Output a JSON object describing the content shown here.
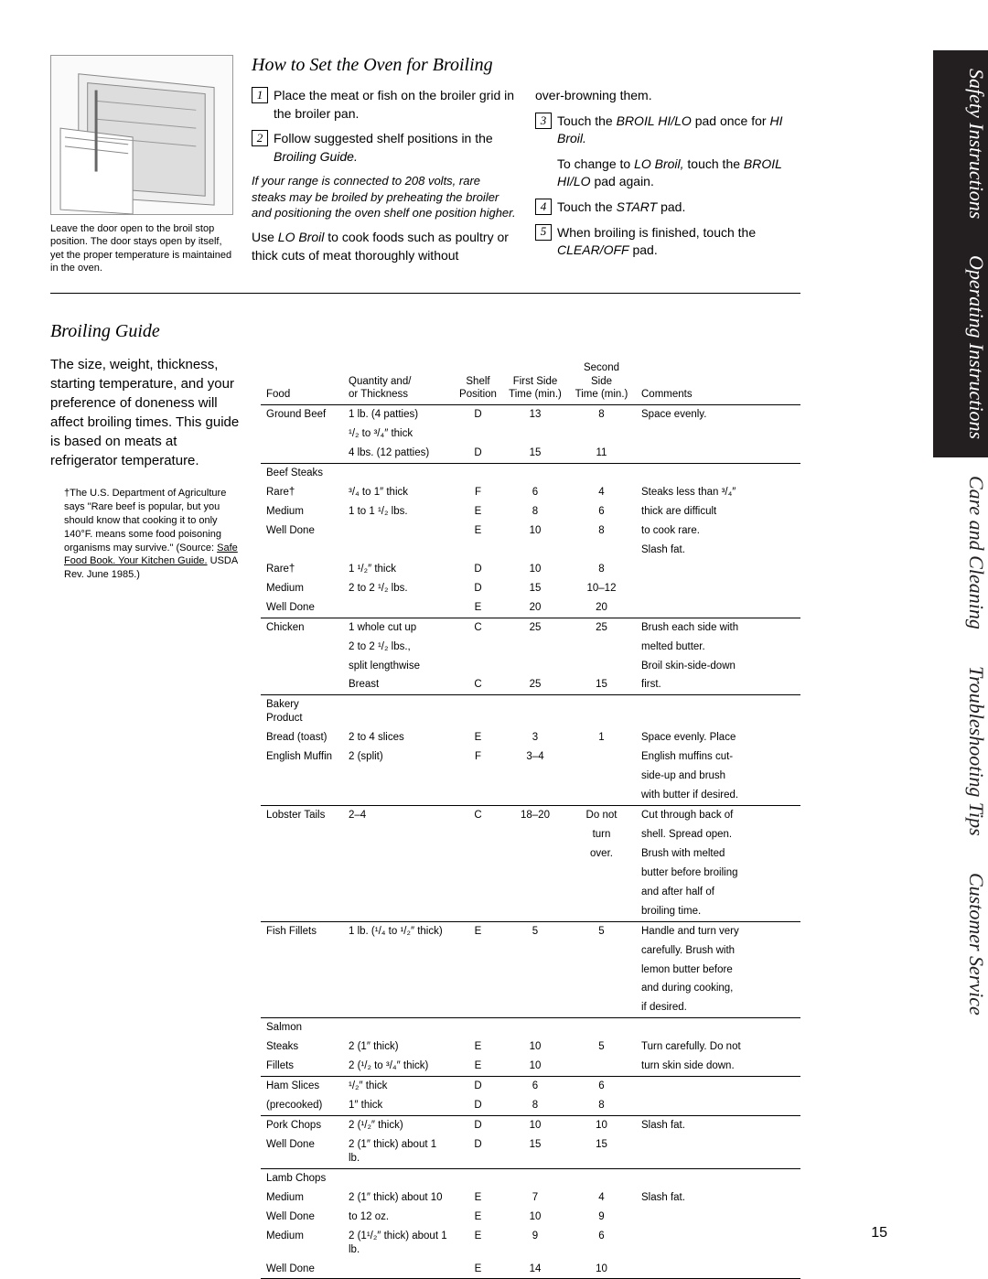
{
  "sidebarTabs": [
    {
      "label": "Safety Instructions",
      "style": "dark"
    },
    {
      "label": "Operating Instructions",
      "style": "dark"
    },
    {
      "label": "Care and Cleaning",
      "style": "light"
    },
    {
      "label": "Troubleshooting Tips",
      "style": "light"
    },
    {
      "label": "Customer Service",
      "style": "light"
    }
  ],
  "imageCaption": "Leave the door open to the broil stop position. The door stays open by itself, yet the proper temperature is maintained in the oven.",
  "section1": {
    "title": "How to Set the Oven for Broiling",
    "left": {
      "step1": "Place the meat or fish on the broiler grid in the broiler pan.",
      "step2a": "Follow suggested shelf positions in the ",
      "step2b": "Broiling Guide.",
      "note": "If your range is connected to 208 volts, rare steaks may be broiled by preheating the broiler and positioning the oven shelf one position higher.",
      "lo1": "Use ",
      "lo2": "LO Broil",
      "lo3": " to cook foods such as poultry or thick cuts of meat thoroughly without"
    },
    "right": {
      "over": "over-browning them.",
      "step3a": "Touch the ",
      "step3b": "BROIL HI/LO",
      "step3c": " pad once for ",
      "step3d": "HI Broil.",
      "chg1": "To change to ",
      "chg2": "LO Broil,",
      "chg3": " touch the ",
      "chg4": "BROIL HI/LO",
      "chg5": " pad again.",
      "step4a": "Touch the ",
      "step4b": "START",
      "step4c": " pad.",
      "step5a": "When broiling is finished, touch the ",
      "step5b": "CLEAR/OFF",
      "step5c": " pad."
    }
  },
  "section2": {
    "title": "Broiling Guide",
    "intro": "The size, weight, thickness, starting temperature, and your preference of doneness will affect broiling times. This guide is based on meats at refrigerator temperature.",
    "usda1": "The U.S. Department of Agriculture says \"Rare beef is popular, but you should know that cooking it to only 140°F. means some food poisoning organisms may survive.\" (Source: ",
    "usda2": "Safe Food Book. Your Kitchen Guide.",
    "usda3": " USDA Rev. June 1985.)",
    "headers": {
      "food": "Food",
      "qty1": "Quantity and/",
      "qty2": "or Thickness",
      "shelf1": "Shelf",
      "shelf2": "Position",
      "first1": "First Side",
      "first2": "Time (min.)",
      "second1": "Second Side",
      "second2": "Time (min.)",
      "comments": "Comments"
    },
    "groups": [
      {
        "rows": [
          {
            "food": "Ground Beef",
            "qty": "1 lb. (4 patties)",
            "shelf": "D",
            "t1": "13",
            "t2": "8",
            "comment": "Space evenly."
          },
          {
            "food": "",
            "qty": "¹/₂ to ³/₄″ thick",
            "shelf": "",
            "t1": "",
            "t2": "",
            "comment": ""
          },
          {
            "food": "",
            "qty": "4 lbs. (12 patties)",
            "shelf": "D",
            "t1": "15",
            "t2": "11",
            "comment": ""
          }
        ]
      },
      {
        "rows": [
          {
            "food": "Beef Steaks",
            "qty": "",
            "shelf": "",
            "t1": "",
            "t2": "",
            "comment": ""
          },
          {
            "food": "Rare†",
            "qty": "³/₄ to 1″ thick",
            "shelf": "F",
            "t1": "6",
            "t2": "4",
            "comment": "Steaks less than ³/₄″"
          },
          {
            "food": "Medium",
            "qty": "1 to 1 ¹/₂ lbs.",
            "shelf": "E",
            "t1": "8",
            "t2": "6",
            "comment": "thick are difficult"
          },
          {
            "food": "Well Done",
            "qty": "",
            "shelf": "E",
            "t1": "10",
            "t2": "8",
            "comment": "to cook rare."
          },
          {
            "food": "",
            "qty": "",
            "shelf": "",
            "t1": "",
            "t2": "",
            "comment": "Slash fat."
          },
          {
            "food": "Rare†",
            "qty": "1 ¹/₂″ thick",
            "shelf": "D",
            "t1": "10",
            "t2": "8",
            "comment": ""
          },
          {
            "food": "Medium",
            "qty": "2 to 2 ¹/₂ lbs.",
            "shelf": "D",
            "t1": "15",
            "t2": "10–12",
            "comment": ""
          },
          {
            "food": "Well Done",
            "qty": "",
            "shelf": "E",
            "t1": "20",
            "t2": "20",
            "comment": ""
          }
        ]
      },
      {
        "rows": [
          {
            "food": "Chicken",
            "qty": "1 whole cut up",
            "shelf": "C",
            "t1": "25",
            "t2": "25",
            "comment": "Brush each side with"
          },
          {
            "food": "",
            "qty": "2 to 2 ¹/₂ lbs.,",
            "shelf": "",
            "t1": "",
            "t2": "",
            "comment": "melted butter."
          },
          {
            "food": "",
            "qty": "split lengthwise",
            "shelf": "",
            "t1": "",
            "t2": "",
            "comment": "Broil skin-side-down"
          },
          {
            "food": "",
            "qty": "Breast",
            "shelf": "C",
            "t1": "25",
            "t2": "15",
            "comment": "first."
          }
        ]
      },
      {
        "rows": [
          {
            "food": "Bakery Product",
            "qty": "",
            "shelf": "",
            "t1": "",
            "t2": "",
            "comment": ""
          },
          {
            "food": "Bread (toast)",
            "qty": "2 to 4 slices",
            "shelf": "E",
            "t1": "3",
            "t2": "1",
            "comment": "Space evenly. Place"
          },
          {
            "food": "English Muffin",
            "qty": "2 (split)",
            "shelf": "F",
            "t1": "3–4",
            "t2": "",
            "comment": "English muffins cut-"
          },
          {
            "food": "",
            "qty": "",
            "shelf": "",
            "t1": "",
            "t2": "",
            "comment": "side-up and brush"
          },
          {
            "food": "",
            "qty": "",
            "shelf": "",
            "t1": "",
            "t2": "",
            "comment": "with butter if desired."
          }
        ]
      },
      {
        "rows": [
          {
            "food": "Lobster Tails",
            "qty": "2–4",
            "shelf": "C",
            "t1": "18–20",
            "t2": "Do not",
            "comment": "Cut through back of"
          },
          {
            "food": "",
            "qty": "",
            "shelf": "",
            "t1": "",
            "t2": "turn",
            "comment": "shell. Spread open."
          },
          {
            "food": "",
            "qty": "",
            "shelf": "",
            "t1": "",
            "t2": "over.",
            "comment": "Brush with melted"
          },
          {
            "food": "",
            "qty": "",
            "shelf": "",
            "t1": "",
            "t2": "",
            "comment": "butter before broiling"
          },
          {
            "food": "",
            "qty": "",
            "shelf": "",
            "t1": "",
            "t2": "",
            "comment": "and after half of"
          },
          {
            "food": "",
            "qty": "",
            "shelf": "",
            "t1": "",
            "t2": "",
            "comment": "broiling time."
          }
        ]
      },
      {
        "rows": [
          {
            "food": "Fish Fillets",
            "qty": "1 lb. (¹/₄ to ¹/₂″ thick)",
            "shelf": "E",
            "t1": "5",
            "t2": "5",
            "comment": "Handle and turn very"
          },
          {
            "food": "",
            "qty": "",
            "shelf": "",
            "t1": "",
            "t2": "",
            "comment": "carefully. Brush with"
          },
          {
            "food": "",
            "qty": "",
            "shelf": "",
            "t1": "",
            "t2": "",
            "comment": "lemon butter before"
          },
          {
            "food": "",
            "qty": "",
            "shelf": "",
            "t1": "",
            "t2": "",
            "comment": "and during cooking,"
          },
          {
            "food": "",
            "qty": "",
            "shelf": "",
            "t1": "",
            "t2": "",
            "comment": "if desired."
          }
        ]
      },
      {
        "rows": [
          {
            "food": "Salmon",
            "qty": "",
            "shelf": "",
            "t1": "",
            "t2": "",
            "comment": ""
          },
          {
            "food": "Steaks",
            "qty": "2 (1″ thick)",
            "shelf": "E",
            "t1": "10",
            "t2": "5",
            "comment": "Turn carefully. Do not"
          },
          {
            "food": "Fillets",
            "qty": "2 (¹/₂ to ³/₄″ thick)",
            "shelf": "E",
            "t1": "10",
            "t2": "",
            "comment": "turn skin side down."
          }
        ]
      },
      {
        "rows": [
          {
            "food": "Ham Slices",
            "qty": "¹/₂″ thick",
            "shelf": "D",
            "t1": "6",
            "t2": "6",
            "comment": ""
          },
          {
            "food": "(precooked)",
            "qty": "1″ thick",
            "shelf": "D",
            "t1": "8",
            "t2": "8",
            "comment": ""
          }
        ]
      },
      {
        "rows": [
          {
            "food": "Pork Chops",
            "qty": "2 (¹/₂″ thick)",
            "shelf": "D",
            "t1": "10",
            "t2": "10",
            "comment": "Slash fat."
          },
          {
            "food": "Well Done",
            "qty": "2 (1″ thick) about 1 lb.",
            "shelf": "D",
            "t1": "15",
            "t2": "15",
            "comment": ""
          }
        ]
      },
      {
        "rows": [
          {
            "food": "Lamb Chops",
            "qty": "",
            "shelf": "",
            "t1": "",
            "t2": "",
            "comment": ""
          },
          {
            "food": "Medium",
            "qty": "2 (1″ thick) about 10",
            "shelf": "E",
            "t1": "7",
            "t2": "4",
            "comment": "Slash fat."
          },
          {
            "food": "Well Done",
            "qty": "to 12 oz.",
            "shelf": "E",
            "t1": "10",
            "t2": "9",
            "comment": ""
          },
          {
            "food": "Medium",
            "qty": "2 (1¹/₂″ thick) about 1 lb.",
            "shelf": "E",
            "t1": "9",
            "t2": "6",
            "comment": ""
          },
          {
            "food": "Well Done",
            "qty": "",
            "shelf": "E",
            "t1": "14",
            "t2": "10",
            "comment": ""
          }
        ]
      }
    ]
  },
  "pageNumber": "15"
}
